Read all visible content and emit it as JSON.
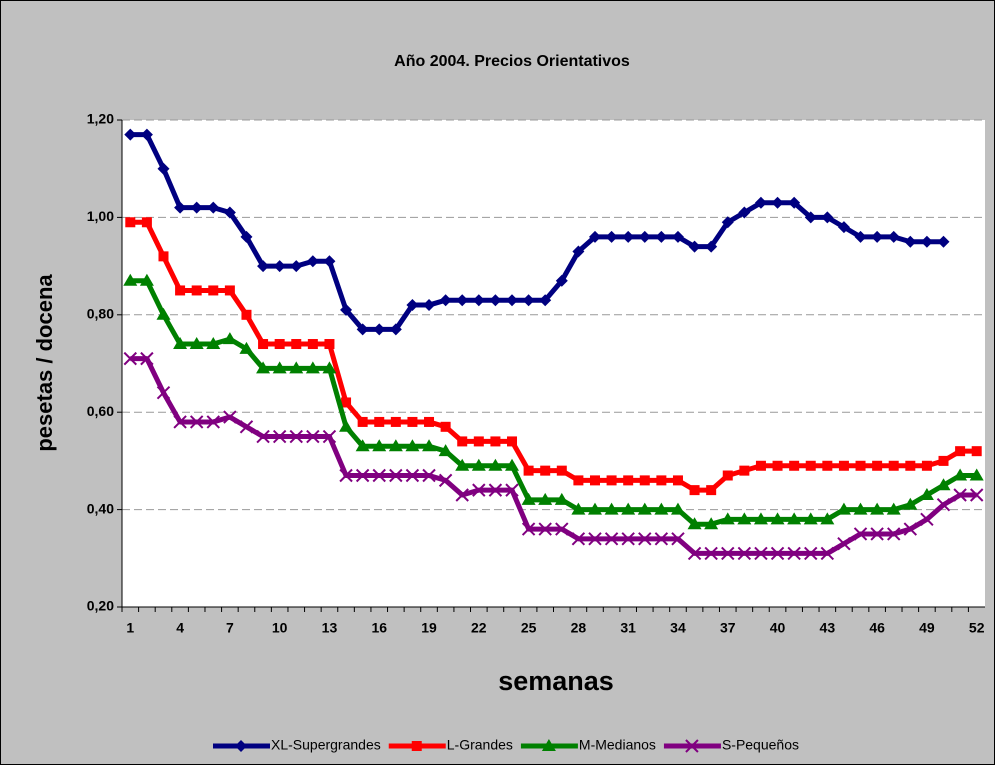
{
  "chart_data": {
    "type": "line",
    "title": "Año 2004. Precios Orientativos",
    "x_label": "semanas",
    "y_label": "pesetas / docena",
    "categories": [
      1,
      null,
      null,
      4,
      null,
      null,
      7,
      null,
      null,
      10,
      null,
      null,
      13,
      null,
      null,
      16,
      null,
      null,
      19,
      null,
      null,
      22,
      null,
      null,
      25,
      null,
      null,
      28,
      null,
      null,
      31,
      null,
      null,
      34,
      null,
      null,
      37,
      null,
      null,
      40,
      null,
      null,
      43,
      null,
      null,
      46,
      null,
      null,
      49,
      null,
      null,
      52
    ],
    "ylim": [
      0.2,
      1.2
    ],
    "yticks": [
      {
        "value": 0.2,
        "label": "0,20"
      },
      {
        "value": 0.4,
        "label": "0,40"
      },
      {
        "value": 0.6,
        "label": "0,60"
      },
      {
        "value": 0.8,
        "label": "0,80"
      },
      {
        "value": 1.0,
        "label": "1,00"
      },
      {
        "value": 1.2,
        "label": "1,20"
      }
    ],
    "grid": true,
    "legend": "bottom",
    "series": [
      {
        "name": "XL-Supergrandes",
        "color": "#000080",
        "marker": "diamond",
        "values": [
          1.17,
          1.17,
          1.1,
          1.02,
          1.02,
          1.02,
          1.01,
          0.96,
          0.9,
          0.9,
          0.9,
          0.91,
          0.91,
          0.81,
          0.77,
          0.77,
          0.77,
          0.82,
          0.82,
          0.83,
          0.83,
          0.83,
          0.83,
          0.83,
          0.83,
          0.83,
          0.87,
          0.93,
          0.96,
          0.96,
          0.96,
          0.96,
          0.96,
          0.96,
          0.94,
          0.94,
          0.99,
          1.01,
          1.03,
          1.03,
          1.03,
          1.0,
          1.0,
          0.98,
          0.96,
          0.96,
          0.96,
          0.95,
          0.95,
          0.95,
          null,
          null
        ]
      },
      {
        "name": "L-Grandes",
        "color": "#ff0000",
        "marker": "square",
        "values": [
          0.99,
          0.99,
          0.92,
          0.85,
          0.85,
          0.85,
          0.85,
          0.8,
          0.74,
          0.74,
          0.74,
          0.74,
          0.74,
          0.62,
          0.58,
          0.58,
          0.58,
          0.58,
          0.58,
          0.57,
          0.54,
          0.54,
          0.54,
          0.54,
          0.48,
          0.48,
          0.48,
          0.46,
          0.46,
          0.46,
          0.46,
          0.46,
          0.46,
          0.46,
          0.44,
          0.44,
          0.47,
          0.48,
          0.49,
          0.49,
          0.49,
          0.49,
          0.49,
          0.49,
          0.49,
          0.49,
          0.49,
          0.49,
          0.49,
          0.5,
          0.52,
          0.52
        ]
      },
      {
        "name": "M-Medianos",
        "color": "#008000",
        "marker": "triangle",
        "values": [
          0.87,
          0.87,
          0.8,
          0.74,
          0.74,
          0.74,
          0.75,
          0.73,
          0.69,
          0.69,
          0.69,
          0.69,
          0.69,
          0.57,
          0.53,
          0.53,
          0.53,
          0.53,
          0.53,
          0.52,
          0.49,
          0.49,
          0.49,
          0.49,
          0.42,
          0.42,
          0.42,
          0.4,
          0.4,
          0.4,
          0.4,
          0.4,
          0.4,
          0.4,
          0.37,
          0.37,
          0.38,
          0.38,
          0.38,
          0.38,
          0.38,
          0.38,
          0.38,
          0.4,
          0.4,
          0.4,
          0.4,
          0.41,
          0.43,
          0.45,
          0.47,
          0.47
        ]
      },
      {
        "name": "S-Pequeños",
        "color": "#800080",
        "marker": "x",
        "values": [
          0.71,
          0.71,
          0.64,
          0.58,
          0.58,
          0.58,
          0.59,
          0.57,
          0.55,
          0.55,
          0.55,
          0.55,
          0.55,
          0.47,
          0.47,
          0.47,
          0.47,
          0.47,
          0.47,
          0.46,
          0.43,
          0.44,
          0.44,
          0.44,
          0.36,
          0.36,
          0.36,
          0.34,
          0.34,
          0.34,
          0.34,
          0.34,
          0.34,
          0.34,
          0.31,
          0.31,
          0.31,
          0.31,
          0.31,
          0.31,
          0.31,
          0.31,
          0.31,
          0.33,
          0.35,
          0.35,
          0.35,
          0.36,
          0.38,
          0.41,
          0.43,
          0.43
        ]
      }
    ]
  }
}
